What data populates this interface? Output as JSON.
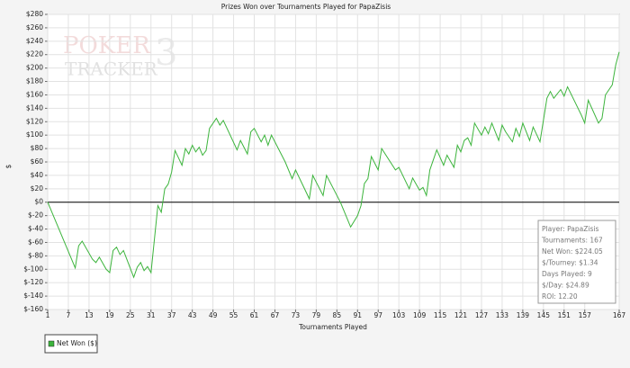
{
  "chart_data": {
    "type": "line",
    "title": "Prizes Won over Tournaments Played for PapaZisis",
    "x_label": "Tournaments Played",
    "y_label": "$",
    "watermark": [
      "POKER",
      "TRACKER",
      "3"
    ],
    "xlim": [
      1,
      167
    ],
    "ylim": [
      -160,
      280
    ],
    "xticks": [
      1,
      7,
      13,
      19,
      25,
      31,
      37,
      43,
      49,
      55,
      61,
      67,
      73,
      79,
      85,
      91,
      97,
      103,
      109,
      115,
      121,
      127,
      133,
      139,
      145,
      151,
      157,
      167
    ],
    "yticks": [
      {
        "value": -160,
        "label": "$-160"
      },
      {
        "value": -140,
        "label": "$-140"
      },
      {
        "value": -120,
        "label": "$-120"
      },
      {
        "value": -100,
        "label": "$-100"
      },
      {
        "value": -80,
        "label": "$-80"
      },
      {
        "value": -60,
        "label": "$-60"
      },
      {
        "value": -40,
        "label": "$-40"
      },
      {
        "value": -20,
        "label": "$-20"
      },
      {
        "value": 0,
        "label": "$0"
      },
      {
        "value": 20,
        "label": "$20"
      },
      {
        "value": 40,
        "label": "$40"
      },
      {
        "value": 60,
        "label": "$60"
      },
      {
        "value": 80,
        "label": "$80"
      },
      {
        "value": 100,
        "label": "$100"
      },
      {
        "value": 120,
        "label": "$120"
      },
      {
        "value": 140,
        "label": "$140"
      },
      {
        "value": 160,
        "label": "$160"
      },
      {
        "value": 180,
        "label": "$180"
      },
      {
        "value": 200,
        "label": "$200"
      },
      {
        "value": 220,
        "label": "$220"
      },
      {
        "value": 240,
        "label": "$240"
      },
      {
        "value": 260,
        "label": "$260"
      },
      {
        "value": 280,
        "label": "$280"
      }
    ],
    "grid": true,
    "legend": "bottom-left",
    "info_box": [
      "Player: PapaZisis",
      "Tournaments: 167",
      "Net Won: $224.05",
      "$/Tourney: $1.34",
      "Days Played: 9",
      "$/Day: $24.89",
      "ROI: 12.20"
    ],
    "series": [
      {
        "name": "Net Won ($)",
        "color": "#3cb43c",
        "x": [
          1,
          9,
          10,
          11,
          14,
          15,
          16,
          18,
          19,
          20,
          21,
          22,
          23,
          26,
          27,
          28,
          29,
          30,
          31,
          33,
          34,
          35,
          36,
          37,
          38,
          40,
          41,
          42,
          43,
          44,
          45,
          46,
          47,
          48,
          50,
          51,
          52,
          56,
          57,
          59,
          60,
          61,
          63,
          64,
          65,
          66,
          70,
          72,
          73,
          77,
          78,
          81,
          82,
          86,
          89,
          91,
          92,
          93,
          94,
          95,
          97,
          98,
          102,
          103,
          106,
          107,
          109,
          110,
          111,
          112,
          114,
          116,
          117,
          119,
          120,
          121,
          122,
          123,
          124,
          125,
          127,
          128,
          129,
          130,
          132,
          133,
          134,
          136,
          137,
          138,
          139,
          141,
          142,
          144,
          146,
          147,
          148,
          150,
          151,
          152,
          156,
          157,
          158,
          161,
          162,
          163,
          165,
          166,
          167
        ],
        "values": [
          0,
          -98,
          -65,
          -58,
          -85,
          -90,
          -82,
          -100,
          -105,
          -72,
          -67,
          -78,
          -72,
          -112,
          -97,
          -90,
          -102,
          -96,
          -105,
          -5,
          -15,
          20,
          27,
          45,
          77,
          55,
          80,
          72,
          85,
          75,
          82,
          70,
          77,
          110,
          125,
          115,
          122,
          78,
          92,
          72,
          105,
          110,
          90,
          100,
          85,
          100,
          60,
          35,
          48,
          5,
          40,
          10,
          40,
          0,
          -37,
          -20,
          -5,
          28,
          35,
          68,
          48,
          80,
          48,
          52,
          20,
          36,
          18,
          22,
          10,
          48,
          78,
          55,
          70,
          52,
          85,
          75,
          92,
          96,
          85,
          118,
          100,
          112,
          102,
          118,
          92,
          115,
          105,
          90,
          110,
          98,
          118,
          92,
          112,
          90,
          155,
          165,
          155,
          168,
          158,
          172,
          130,
          118,
          152,
          118,
          125,
          160,
          175,
          205,
          224.05
        ]
      }
    ]
  }
}
